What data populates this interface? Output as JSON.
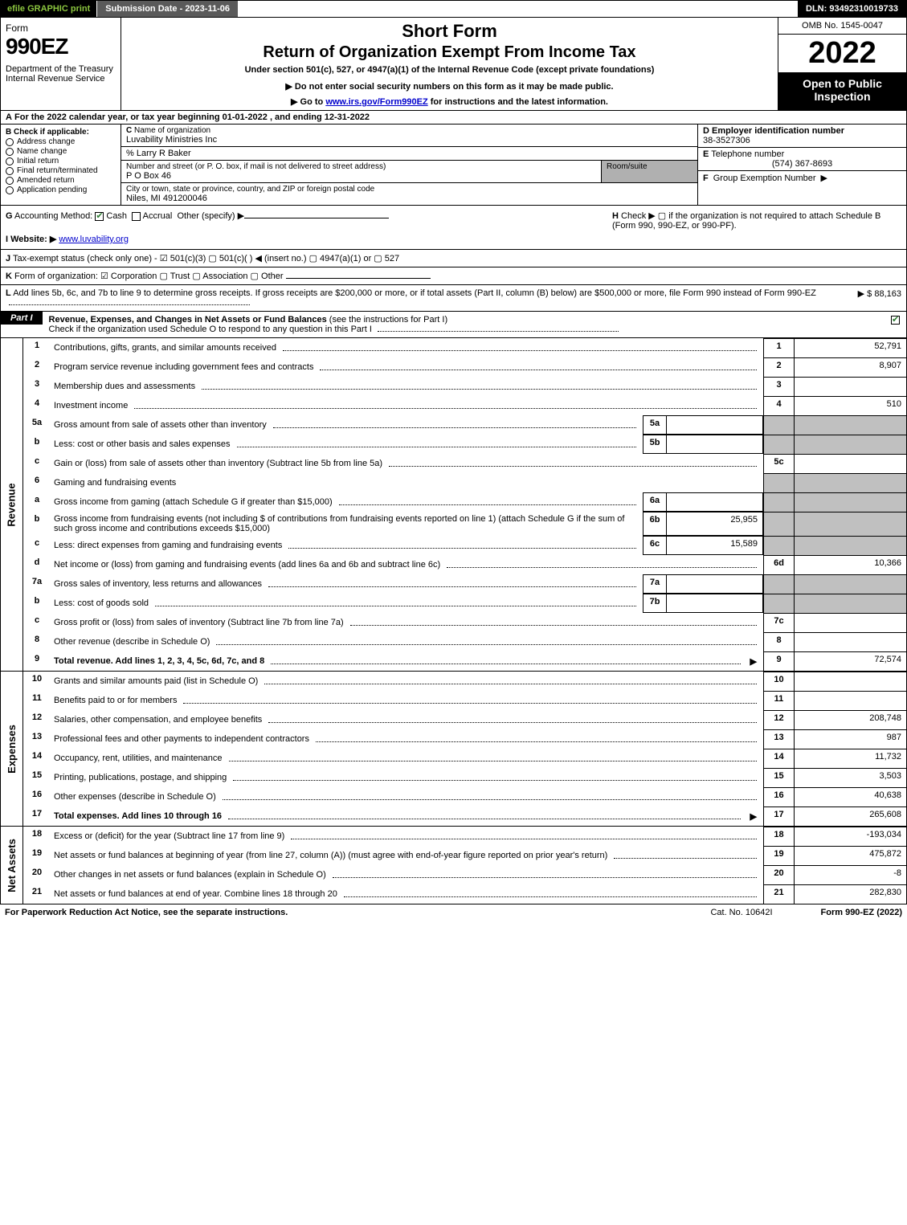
{
  "topbar": {
    "efile": "efile GRAPHIC print",
    "subdate": "Submission Date - 2023-11-06",
    "dln": "DLN: 93492310019733"
  },
  "header": {
    "form_word": "Form",
    "form_num": "990EZ",
    "dept": "Department of the Treasury\nInternal Revenue Service",
    "short_form": "Short Form",
    "title": "Return of Organization Exempt From Income Tax",
    "subtitle": "Under section 501(c), 527, or 4947(a)(1) of the Internal Revenue Code (except private foundations)",
    "inst1_arrow": "▶",
    "inst1": "Do not enter social security numbers on this form as it may be made public.",
    "inst2_arrow": "▶",
    "inst2_pre": "Go to ",
    "inst2_link": "www.irs.gov/Form990EZ",
    "inst2_post": " for instructions and the latest information.",
    "omb": "OMB No. 1545-0047",
    "year": "2022",
    "open": "Open to Public Inspection"
  },
  "rowA": {
    "label": "A",
    "text": "For the 2022 calendar year, or tax year beginning 01-01-2022 , and ending 12-31-2022"
  },
  "colB": {
    "label": "B",
    "caption": "Check if applicable:",
    "opts": [
      "Address change",
      "Name change",
      "Initial return",
      "Final return/terminated",
      "Amended return",
      "Application pending"
    ]
  },
  "C": {
    "label": "C",
    "cap": "Name of organization",
    "name": "Luvability Ministries Inc",
    "care": "% Larry R Baker",
    "street_cap": "Number and street (or P. O. box, if mail is not delivered to street address)",
    "street": "P O Box 46",
    "room_cap": "Room/suite",
    "city_cap": "City or town, state or province, country, and ZIP or foreign postal code",
    "city": "Niles, MI  491200046"
  },
  "D": {
    "label": "D",
    "cap": "Employer identification number",
    "val": "38-3527306"
  },
  "E": {
    "label": "E",
    "cap": "Telephone number",
    "val": "(574) 367-8693"
  },
  "F": {
    "label": "F",
    "cap": "Group Exemption Number",
    "arrow": "▶"
  },
  "G": {
    "label": "G",
    "cap": "Accounting Method:",
    "cash": "Cash",
    "accrual": "Accrual",
    "other": "Other (specify) ▶"
  },
  "H": {
    "label": "H",
    "text": "Check ▶  ▢  if the organization is not required to attach Schedule B (Form 990, 990-EZ, or 990-PF)."
  },
  "I": {
    "label": "I",
    "cap": "Website: ▶",
    "val": "www.luvability.org"
  },
  "J": {
    "label": "J",
    "text": "Tax-exempt status (check only one) -  ☑ 501(c)(3)  ▢ 501(c)(  ) ◀ (insert no.)  ▢ 4947(a)(1) or  ▢ 527"
  },
  "K": {
    "label": "K",
    "text": "Form of organization:  ☑ Corporation   ▢ Trust   ▢ Association   ▢ Other"
  },
  "L": {
    "label": "L",
    "text": "Add lines 5b, 6c, and 7b to line 9 to determine gross receipts. If gross receipts are $200,000 or more, or if total assets (Part II, column (B) below) are $500,000 or more, file Form 990 instead of Form 990-EZ",
    "arrow": "▶ $",
    "val": "88,163"
  },
  "part1": {
    "label": "Part I",
    "title": "Revenue, Expenses, and Changes in Net Assets or Fund Balances",
    "note": "(see the instructions for Part I)",
    "check": "Check if the organization used Schedule O to respond to any question in this Part I"
  },
  "vlabels": {
    "rev": "Revenue",
    "exp": "Expenses",
    "na": "Net Assets"
  },
  "lines": {
    "1": {
      "n": "1",
      "d": "Contributions, gifts, grants, and similar amounts received",
      "rn": "1",
      "rv": "52,791"
    },
    "2": {
      "n": "2",
      "d": "Program service revenue including government fees and contracts",
      "rn": "2",
      "rv": "8,907"
    },
    "3": {
      "n": "3",
      "d": "Membership dues and assessments",
      "rn": "3",
      "rv": ""
    },
    "4": {
      "n": "4",
      "d": "Investment income",
      "rn": "4",
      "rv": "510"
    },
    "5a": {
      "n": "5a",
      "d": "Gross amount from sale of assets other than inventory",
      "mn": "5a",
      "mv": ""
    },
    "5b": {
      "n": "b",
      "d": "Less: cost or other basis and sales expenses",
      "mn": "5b",
      "mv": ""
    },
    "5c": {
      "n": "c",
      "d": "Gain or (loss) from sale of assets other than inventory (Subtract line 5b from line 5a)",
      "rn": "5c",
      "rv": ""
    },
    "6": {
      "n": "6",
      "d": "Gaming and fundraising events"
    },
    "6a": {
      "n": "a",
      "d": "Gross income from gaming (attach Schedule G if greater than $15,000)",
      "mn": "6a",
      "mv": ""
    },
    "6b": {
      "n": "b",
      "d": "Gross income from fundraising events (not including $                    of contributions from fundraising events reported on line 1) (attach Schedule G if the sum of such gross income and contributions exceeds $15,000)",
      "mn": "6b",
      "mv": "25,955"
    },
    "6c": {
      "n": "c",
      "d": "Less: direct expenses from gaming and fundraising events",
      "mn": "6c",
      "mv": "15,589"
    },
    "6d": {
      "n": "d",
      "d": "Net income or (loss) from gaming and fundraising events (add lines 6a and 6b and subtract line 6c)",
      "rn": "6d",
      "rv": "10,366"
    },
    "7a": {
      "n": "7a",
      "d": "Gross sales of inventory, less returns and allowances",
      "mn": "7a",
      "mv": ""
    },
    "7b": {
      "n": "b",
      "d": "Less: cost of goods sold",
      "mn": "7b",
      "mv": ""
    },
    "7c": {
      "n": "c",
      "d": "Gross profit or (loss) from sales of inventory (Subtract line 7b from line 7a)",
      "rn": "7c",
      "rv": ""
    },
    "8": {
      "n": "8",
      "d": "Other revenue (describe in Schedule O)",
      "rn": "8",
      "rv": ""
    },
    "9": {
      "n": "9",
      "d": "Total revenue. Add lines 1, 2, 3, 4, 5c, 6d, 7c, and 8",
      "rn": "9",
      "rv": "72,574",
      "bold": true,
      "arrow": true
    },
    "10": {
      "n": "10",
      "d": "Grants and similar amounts paid (list in Schedule O)",
      "rn": "10",
      "rv": ""
    },
    "11": {
      "n": "11",
      "d": "Benefits paid to or for members",
      "rn": "11",
      "rv": ""
    },
    "12": {
      "n": "12",
      "d": "Salaries, other compensation, and employee benefits",
      "rn": "12",
      "rv": "208,748"
    },
    "13": {
      "n": "13",
      "d": "Professional fees and other payments to independent contractors",
      "rn": "13",
      "rv": "987"
    },
    "14": {
      "n": "14",
      "d": "Occupancy, rent, utilities, and maintenance",
      "rn": "14",
      "rv": "11,732"
    },
    "15": {
      "n": "15",
      "d": "Printing, publications, postage, and shipping",
      "rn": "15",
      "rv": "3,503"
    },
    "16": {
      "n": "16",
      "d": "Other expenses (describe in Schedule O)",
      "rn": "16",
      "rv": "40,638"
    },
    "17": {
      "n": "17",
      "d": "Total expenses. Add lines 10 through 16",
      "rn": "17",
      "rv": "265,608",
      "bold": true,
      "arrow": true
    },
    "18": {
      "n": "18",
      "d": "Excess or (deficit) for the year (Subtract line 17 from line 9)",
      "rn": "18",
      "rv": "-193,034"
    },
    "19": {
      "n": "19",
      "d": "Net assets or fund balances at beginning of year (from line 27, column (A)) (must agree with end-of-year figure reported on prior year's return)",
      "rn": "19",
      "rv": "475,872"
    },
    "20": {
      "n": "20",
      "d": "Other changes in net assets or fund balances (explain in Schedule O)",
      "rn": "20",
      "rv": "-8"
    },
    "21": {
      "n": "21",
      "d": "Net assets or fund balances at end of year. Combine lines 18 through 20",
      "rn": "21",
      "rv": "282,830"
    }
  },
  "footer": {
    "l": "For Paperwork Reduction Act Notice, see the separate instructions.",
    "m": "Cat. No. 10642I",
    "r": "Form 990-EZ (2022)"
  },
  "colors": {
    "green": "#8cc63f",
    "grey": "#c0c0c0"
  }
}
